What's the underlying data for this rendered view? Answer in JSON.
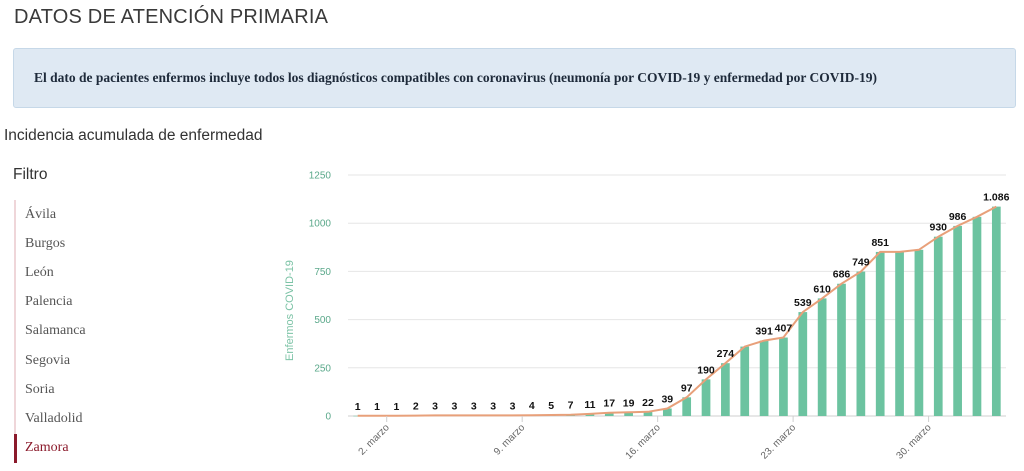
{
  "page": {
    "title": "DATOS DE ATENCIÓN PRIMARIA",
    "info": "El dato de pacientes enfermos incluye todos los diagnósticos compatibles con coronavirus (neumonía por COVID-19 y enfermedad por COVID-19)",
    "section_title": "Incidencia acumulada de enfermedad"
  },
  "filter": {
    "title": "Filtro",
    "items": [
      {
        "label": "Ávila",
        "active": false
      },
      {
        "label": "Burgos",
        "active": false
      },
      {
        "label": "León",
        "active": false
      },
      {
        "label": "Palencia",
        "active": false
      },
      {
        "label": "Salamanca",
        "active": false
      },
      {
        "label": "Segovia",
        "active": false
      },
      {
        "label": "Soria",
        "active": false
      },
      {
        "label": "Valladolid",
        "active": false
      },
      {
        "label": "Zamora",
        "active": true
      }
    ]
  },
  "colors": {
    "bar": "#6cc3a0",
    "line": "#e8a07a",
    "active_filter": "#8b1a2b"
  },
  "chart_data": {
    "type": "bar",
    "ylabel": "Enfermos COVID-19",
    "ylim": [
      0,
      1250
    ],
    "yticks": [
      0,
      250,
      500,
      750,
      1000,
      1250
    ],
    "grid": true,
    "x_start_day": 1,
    "x_tick_labels": [
      {
        "index": 1,
        "label": "2. marzo"
      },
      {
        "index": 8,
        "label": "9. marzo"
      },
      {
        "index": 15,
        "label": "16. marzo"
      },
      {
        "index": 22,
        "label": "23. marzo"
      },
      {
        "index": 29,
        "label": "30. marzo"
      }
    ],
    "values": [
      1,
      1,
      1,
      2,
      3,
      3,
      3,
      3,
      3,
      4,
      5,
      7,
      11,
      17,
      19,
      22,
      39,
      97,
      190,
      274,
      360,
      391,
      407,
      539,
      610,
      686,
      749,
      851,
      851,
      862,
      930,
      986,
      1033,
      1086
    ],
    "data_labels": [
      "1",
      "1",
      "1",
      "2",
      "3",
      "3",
      "3",
      "3",
      "3",
      "4",
      "5",
      "7",
      "11",
      "17",
      "19",
      "22",
      "39",
      "97",
      "190",
      "274",
      "",
      "391",
      "407",
      "539",
      "610",
      "686",
      "749",
      "851",
      "",
      "",
      "930",
      "986",
      "",
      "1.086"
    ],
    "series": [
      {
        "type": "bar",
        "values_ref": "values"
      },
      {
        "type": "line",
        "values_ref": "values"
      }
    ]
  }
}
